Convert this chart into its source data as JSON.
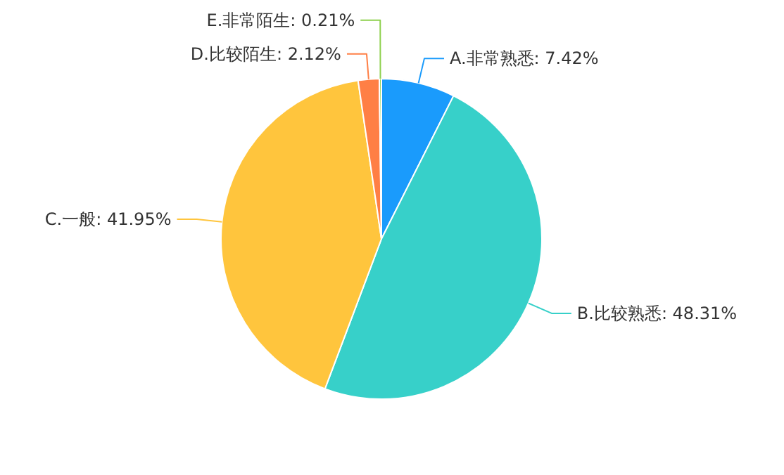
{
  "chart_data": {
    "type": "pie",
    "categories": [
      "A.非常熟悉",
      "B.比较熟悉",
      "C.一般",
      "D.比较陌生",
      "E.非常陌生"
    ],
    "values": [
      7.42,
      48.31,
      41.95,
      2.12,
      0.21
    ],
    "value_labels": [
      "7.42%",
      "48.31%",
      "41.95%",
      "2.12%",
      "0.21%"
    ],
    "colors": [
      "#1a9bfc",
      "#37d0c9",
      "#ffc53d",
      "#ff7f45",
      "#8fd14f"
    ]
  }
}
